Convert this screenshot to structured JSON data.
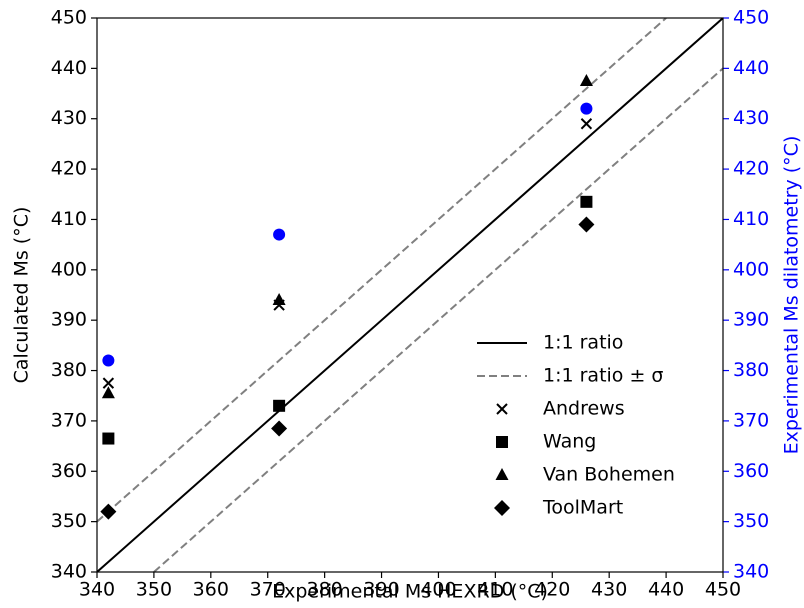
{
  "chart_data": {
    "type": "scatter",
    "xlabel": "Experimental Ms HEXRD (°C)",
    "ylabel": "Calculated Ms (°C)",
    "y2label": "Experimental Ms dilatometry (°C)",
    "xlim": [
      340,
      450
    ],
    "ylim": [
      340,
      450
    ],
    "y2lim": [
      340,
      450
    ],
    "xticks": [
      340,
      350,
      360,
      370,
      380,
      390,
      400,
      410,
      420,
      430,
      440,
      450
    ],
    "yticks": [
      340,
      350,
      360,
      370,
      380,
      390,
      400,
      410,
      420,
      430,
      440,
      450
    ],
    "y2ticks": [
      340,
      350,
      360,
      370,
      380,
      390,
      400,
      410,
      420,
      430,
      440,
      450
    ],
    "legend": "lower right",
    "grid": false,
    "y2color": "#0000ff",
    "series": [
      {
        "name": "1:1 ratio",
        "mark": "line",
        "style": "solid",
        "color": "#000000",
        "x": [
          340,
          450
        ],
        "values": [
          340,
          450
        ]
      },
      {
        "name": "1:1 ratio ± σ",
        "mark": "line",
        "style": "dashed",
        "color": "#808080",
        "x": [
          340,
          440
        ],
        "values": [
          350,
          450
        ]
      },
      {
        "mark": "line",
        "style": "dashed",
        "color": "#808080",
        "x": [
          350,
          450
        ],
        "values": [
          340,
          440
        ]
      },
      {
        "name": "Andrews",
        "mark": "x",
        "color": "#000000",
        "x": [
          342,
          372,
          426
        ],
        "values": [
          377.5,
          393,
          429
        ]
      },
      {
        "name": "Wang",
        "mark": "square",
        "color": "#000000",
        "x": [
          342,
          372,
          426
        ],
        "values": [
          366.5,
          373,
          413.5
        ]
      },
      {
        "name": "Van Bohemen",
        "mark": "triangle",
        "color": "#000000",
        "x": [
          342,
          372,
          426
        ],
        "values": [
          375.5,
          394,
          437.5
        ]
      },
      {
        "name": "ToolMart",
        "mark": "diamond",
        "color": "#000000",
        "x": [
          342,
          372,
          426
        ],
        "values": [
          352,
          368.5,
          409
        ]
      },
      {
        "mark": "circle",
        "color": "#0000ff",
        "axis": "y2",
        "x": [
          342,
          372,
          426
        ],
        "values": [
          382,
          407,
          432
        ]
      }
    ]
  }
}
